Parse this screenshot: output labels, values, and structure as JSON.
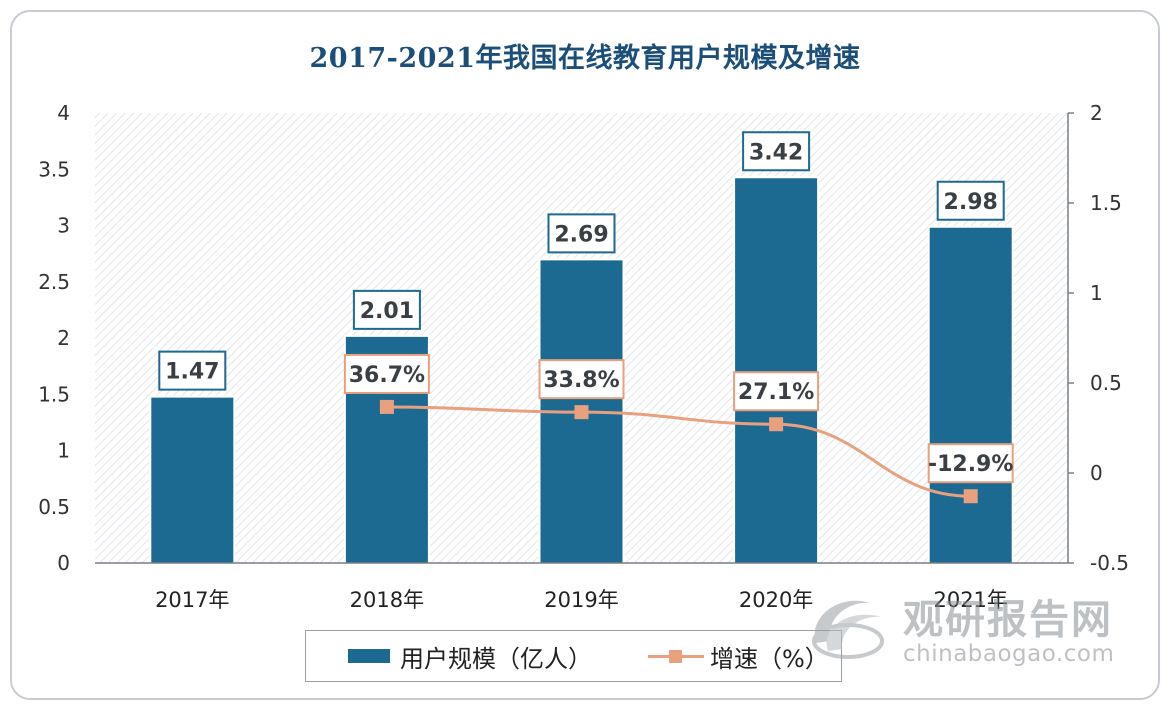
{
  "colors": {
    "bar": "#1c6a92",
    "line": "#e8a07e",
    "title": "#1b4f7a",
    "label_border_bar": "#1c6a92",
    "label_border_line": "#e8a07e",
    "label_text": "#3a3f45"
  },
  "chart_data": {
    "type": "bar",
    "title": "2017-2021年我国在线教育用户规模及增速",
    "categories": [
      "2017年",
      "2018年",
      "2019年",
      "2020年",
      "2021年"
    ],
    "series": [
      {
        "name": "用户规模（亿人）",
        "type": "bar",
        "axis": "left",
        "values": [
          1.47,
          2.01,
          2.69,
          3.42,
          2.98
        ],
        "labels": [
          "1.47",
          "2.01",
          "2.69",
          "3.42",
          "2.98"
        ]
      },
      {
        "name": "增速（%）",
        "type": "line",
        "axis": "right",
        "values": [
          null,
          0.367,
          0.338,
          0.271,
          -0.129
        ],
        "labels": [
          "",
          "36.7%",
          "33.8%",
          "27.1%",
          "-12.9%"
        ]
      }
    ],
    "y_left": {
      "lim": [
        0,
        4
      ],
      "ticks": [
        0,
        0.5,
        1,
        1.5,
        2,
        2.5,
        3,
        3.5,
        4
      ],
      "tick_labels": [
        "0",
        "0.5",
        "1",
        "1.5",
        "2",
        "2.5",
        "3",
        "3.5",
        "4"
      ]
    },
    "y_right": {
      "lim": [
        -0.5,
        2
      ],
      "ticks": [
        -0.5,
        0,
        0.5,
        1,
        1.5,
        2
      ],
      "tick_labels": [
        "-0.5",
        "0",
        "0.5",
        "1",
        "1.5",
        "2"
      ]
    },
    "grid": false,
    "legend": "bottom"
  },
  "legend": {
    "bar_label": "用户规模（亿人）",
    "line_label": "增速（%）"
  },
  "watermark": {
    "brand_cn": "观研报告网",
    "brand_url": "chinabaogao.com"
  }
}
